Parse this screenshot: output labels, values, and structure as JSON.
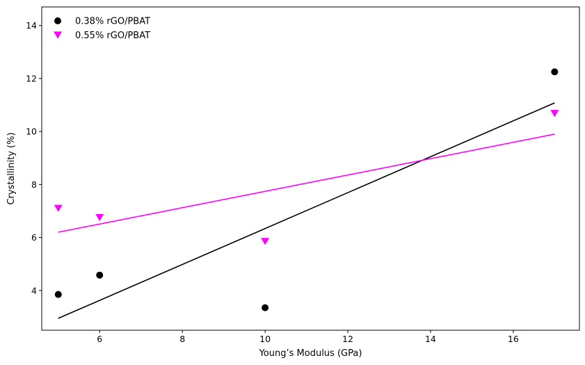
{
  "chart_data": {
    "type": "scatter",
    "xlabel": "Young’s Modulus (GPa)",
    "ylabel": "Crystallinity (%)",
    "xlim": [
      4.6,
      17.6
    ],
    "ylim": [
      2.5,
      14.7
    ],
    "xticks": [
      6,
      8,
      10,
      12,
      14,
      16
    ],
    "yticks": [
      4,
      6,
      8,
      10,
      12,
      14
    ],
    "grid": false,
    "legend_position": "top-left",
    "series": [
      {
        "name": "0.38% rGO/PBAT",
        "marker": "circle",
        "color": "#000000",
        "x": [
          5,
          6,
          10,
          17
        ],
        "y": [
          3.85,
          4.58,
          3.35,
          12.25
        ],
        "fit_line": {
          "x": [
            5,
            17
          ],
          "y": [
            2.95,
            11.08
          ]
        }
      },
      {
        "name": "0.55% rGO/PBAT",
        "marker": "triangle-down",
        "color": "#ff00ff",
        "x": [
          5,
          6,
          10,
          17
        ],
        "y": [
          7.1,
          6.75,
          5.85,
          10.68
        ],
        "fit_line": {
          "x": [
            5,
            17
          ],
          "y": [
            6.2,
            9.9
          ]
        }
      }
    ]
  }
}
